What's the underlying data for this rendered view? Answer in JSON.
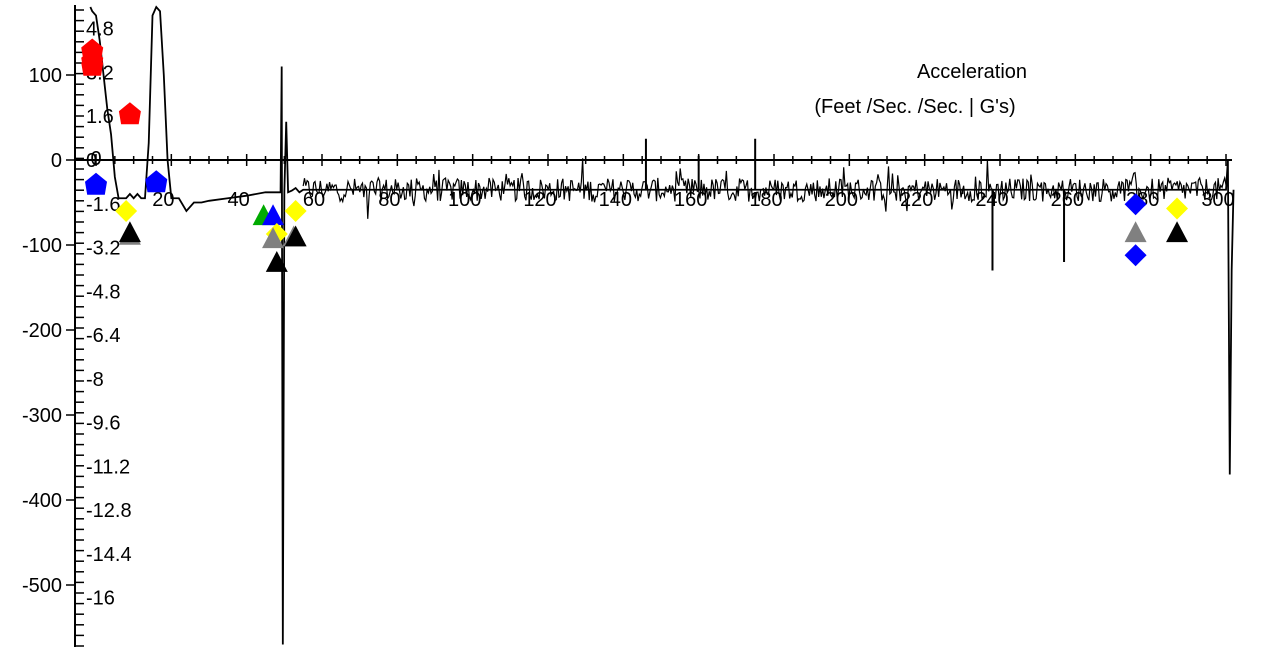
{
  "chart_data": {
    "type": "line",
    "title": "Acceleration",
    "subtitle": "(Feet /Sec. /Sec. | G's)",
    "xlabel": "",
    "ylabel": "",
    "xlim": [
      -2,
      302
    ],
    "ylim": [
      -570,
      180
    ],
    "grid": false,
    "legend": "none",
    "x_ticks": [
      "0",
      "20",
      "40",
      "60",
      "80",
      "100",
      "120",
      "140",
      "160",
      "180",
      "200",
      "220",
      "240",
      "260",
      "280",
      "300"
    ],
    "y_ticks_ftps2": [
      "100",
      "0",
      "-100",
      "-200",
      "-300",
      "-400",
      "-500"
    ],
    "y_ticks_g": [
      "4.8",
      "3.2",
      "1.6",
      "0",
      "-1.6",
      "-3.2",
      "-4.8",
      "-6.4",
      "-8",
      "-9.6",
      "-11.2",
      "-12.8",
      "-14.4",
      "-16"
    ],
    "series": [
      {
        "color": "#000000",
        "x": [
          -1.5,
          -1,
          0,
          1,
          2,
          3,
          4,
          5,
          6,
          7,
          8,
          9,
          10,
          11,
          12,
          13,
          14,
          15,
          16,
          17,
          18,
          19,
          20,
          22,
          24,
          26,
          28,
          30,
          35,
          40,
          45,
          48,
          49,
          49.3,
          49.6,
          50,
          50.5,
          51,
          52,
          53,
          54,
          55,
          300,
          300.5,
          301,
          301.5,
          302
        ],
        "y": [
          180,
          175,
          170,
          140,
          100,
          60,
          30,
          -20,
          -45,
          -45,
          -45,
          -40,
          -45,
          -40,
          -45,
          -45,
          20,
          170,
          180,
          175,
          100,
          0,
          -45,
          -45,
          -60,
          -50,
          -50,
          -48,
          -45,
          -42,
          -38,
          -38,
          -38,
          110,
          -570,
          -38,
          45,
          -38,
          -36,
          -33,
          -38,
          -35,
          -35,
          0,
          -370,
          -130,
          -35
        ]
      }
    ],
    "noise_segment": {
      "x_range": [
        55,
        300
      ],
      "baseline": -35
    },
    "spikes": [
      {
        "x": 146,
        "y": 25
      },
      {
        "x": 160,
        "y": 5
      },
      {
        "x": 175,
        "y": 25
      },
      {
        "x": 230,
        "y": -40
      },
      {
        "x": 238,
        "y": -130
      },
      {
        "x": 257,
        "y": -120
      },
      {
        "x": 299,
        "y": -35
      }
    ],
    "markers": [
      {
        "shape": "pentagon",
        "color": "#ff0000",
        "x": -1,
        "y": 130
      },
      {
        "shape": "pentagon",
        "color": "#ff0000",
        "x": -1,
        "y": 118
      },
      {
        "shape": "pentagon",
        "color": "#ff0000",
        "x": -1,
        "y": 112
      },
      {
        "shape": "pentagon",
        "color": "#ff0000",
        "x": 9,
        "y": 55
      },
      {
        "shape": "pentagon",
        "color": "#0000ff",
        "x": 0,
        "y": -28
      },
      {
        "shape": "pentagon",
        "color": "#0000ff",
        "x": 16,
        "y": -25
      },
      {
        "shape": "diamond",
        "color": "#ffff00",
        "x": 8,
        "y": -60
      },
      {
        "shape": "triangle",
        "color": "#808080",
        "x": 9,
        "y": -88
      },
      {
        "shape": "triangle",
        "color": "#000000",
        "x": 9,
        "y": -85
      },
      {
        "shape": "triangle",
        "color": "#00aa00",
        "x": 44.5,
        "y": -65
      },
      {
        "shape": "triangle",
        "color": "#0000ff",
        "x": 47,
        "y": -65
      },
      {
        "shape": "diamond",
        "color": "#ffff00",
        "x": 48,
        "y": -87
      },
      {
        "shape": "triangle",
        "color": "#808080",
        "x": 47,
        "y": -92
      },
      {
        "shape": "triangle",
        "color": "#000000",
        "x": 48,
        "y": -120
      },
      {
        "shape": "diamond",
        "color": "#ffff00",
        "x": 53,
        "y": -60
      },
      {
        "shape": "triangle",
        "color": "#808080",
        "x": 52.5,
        "y": -90
      },
      {
        "shape": "triangle",
        "color": "#000000",
        "x": 53,
        "y": -90
      },
      {
        "shape": "diamond",
        "color": "#0000ff",
        "x": 276,
        "y": -52
      },
      {
        "shape": "triangle",
        "color": "#808080",
        "x": 276,
        "y": -85
      },
      {
        "shape": "diamond",
        "color": "#0000ff",
        "x": 276,
        "y": -112
      },
      {
        "shape": "diamond",
        "color": "#ffff00",
        "x": 287,
        "y": -57
      },
      {
        "shape": "triangle",
        "color": "#000000",
        "x": 287,
        "y": -85
      }
    ]
  }
}
